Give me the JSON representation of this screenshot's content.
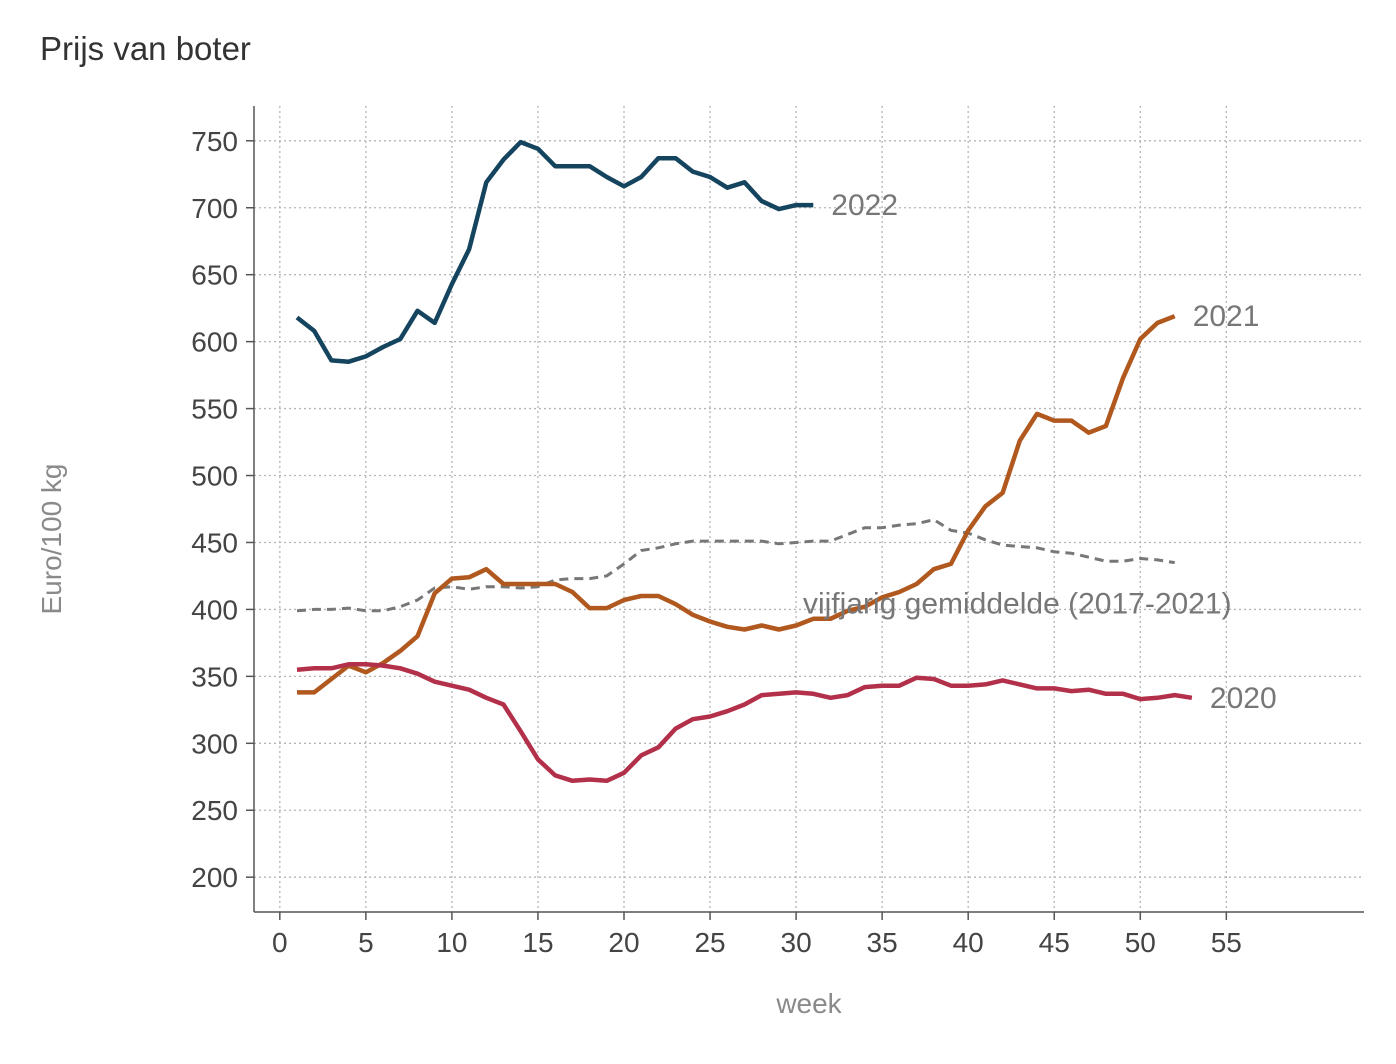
{
  "chart_data": {
    "type": "line",
    "title": "Prijs van boter",
    "xlabel": "week",
    "ylabel": "Euro/100 kg",
    "xlim": [
      -1.5,
      63
    ],
    "ylim": [
      174,
      776
    ],
    "x_ticks": [
      0,
      5,
      10,
      15,
      20,
      25,
      30,
      35,
      40,
      45,
      50,
      55
    ],
    "y_ticks": [
      200,
      250,
      300,
      350,
      400,
      450,
      500,
      550,
      600,
      650,
      700,
      750
    ],
    "grid": true,
    "series": [
      {
        "name": "2022",
        "color": "#15445e",
        "dash": false,
        "x": [
          1,
          2,
          3,
          4,
          5,
          6,
          7,
          8,
          9,
          10,
          11,
          12,
          13,
          14,
          15,
          16,
          17,
          18,
          19,
          20,
          21,
          22,
          23,
          24,
          25,
          26,
          27,
          28,
          29,
          30,
          31
        ],
        "values": [
          618,
          608,
          586,
          585,
          589,
          596,
          602,
          623,
          614,
          643,
          669,
          719,
          736,
          749,
          744,
          731,
          731,
          731,
          723,
          716,
          723,
          737,
          737,
          727,
          723,
          715,
          719,
          705,
          699,
          702,
          702
        ]
      },
      {
        "name": "2021",
        "color": "#b0581e",
        "dash": false,
        "x": [
          1,
          2,
          3,
          4,
          5,
          6,
          7,
          8,
          9,
          10,
          11,
          12,
          13,
          14,
          15,
          16,
          17,
          18,
          19,
          20,
          21,
          22,
          23,
          24,
          25,
          26,
          27,
          28,
          29,
          30,
          31,
          32,
          33,
          34,
          35,
          36,
          37,
          38,
          39,
          40,
          41,
          42,
          43,
          44,
          45,
          46,
          47,
          48,
          49,
          50,
          51,
          52
        ],
        "values": [
          338,
          338,
          348,
          358,
          353,
          360,
          369,
          380,
          412,
          423,
          424,
          430,
          419,
          419,
          419,
          419,
          413,
          401,
          401,
          407,
          410,
          410,
          404,
          396,
          391,
          387,
          385,
          388,
          385,
          388,
          393,
          393,
          399,
          402,
          409,
          413,
          419,
          430,
          434,
          459,
          477,
          487,
          526,
          546,
          541,
          541,
          532,
          537,
          573,
          602,
          614,
          619
        ]
      },
      {
        "name": "2020",
        "color": "#b3304a",
        "dash": false,
        "x": [
          1,
          2,
          3,
          4,
          5,
          6,
          7,
          8,
          9,
          10,
          11,
          12,
          13,
          14,
          15,
          16,
          17,
          18,
          19,
          20,
          21,
          22,
          23,
          24,
          25,
          26,
          27,
          28,
          29,
          30,
          31,
          32,
          33,
          34,
          35,
          36,
          37,
          38,
          39,
          40,
          41,
          42,
          43,
          44,
          45,
          46,
          47,
          48,
          49,
          50,
          51,
          52,
          53
        ],
        "values": [
          355,
          356,
          356,
          359,
          359,
          358,
          356,
          352,
          346,
          343,
          340,
          334,
          329,
          309,
          288,
          276,
          272,
          273,
          272,
          278,
          291,
          297,
          311,
          318,
          320,
          324,
          329,
          336,
          337,
          338,
          337,
          334,
          336,
          342,
          343,
          343,
          349,
          348,
          343,
          343,
          344,
          347,
          344,
          341,
          341,
          339,
          340,
          337,
          337,
          333,
          334,
          336,
          334
        ]
      },
      {
        "name": "vijfjarig gemiddelde (2017-2021)",
        "color": "#777777",
        "dash": true,
        "x": [
          1,
          2,
          3,
          4,
          5,
          6,
          7,
          8,
          9,
          10,
          11,
          12,
          13,
          14,
          15,
          16,
          17,
          18,
          19,
          20,
          21,
          22,
          23,
          24,
          25,
          26,
          27,
          28,
          29,
          30,
          31,
          32,
          33,
          34,
          35,
          36,
          37,
          38,
          39,
          40,
          41,
          42,
          43,
          44,
          45,
          46,
          47,
          48,
          49,
          50,
          51,
          52
        ],
        "values": [
          399,
          400,
          400,
          401,
          399,
          399,
          402,
          407,
          416,
          417,
          415,
          417,
          417,
          416,
          417,
          422,
          423,
          423,
          425,
          434,
          444,
          446,
          449,
          451,
          451,
          451,
          451,
          451,
          449,
          450,
          451,
          451,
          456,
          461,
          461,
          463,
          464,
          467,
          459,
          457,
          452,
          448,
          447,
          446,
          443,
          442,
          439,
          436,
          436,
          438,
          437,
          435
        ]
      }
    ]
  }
}
